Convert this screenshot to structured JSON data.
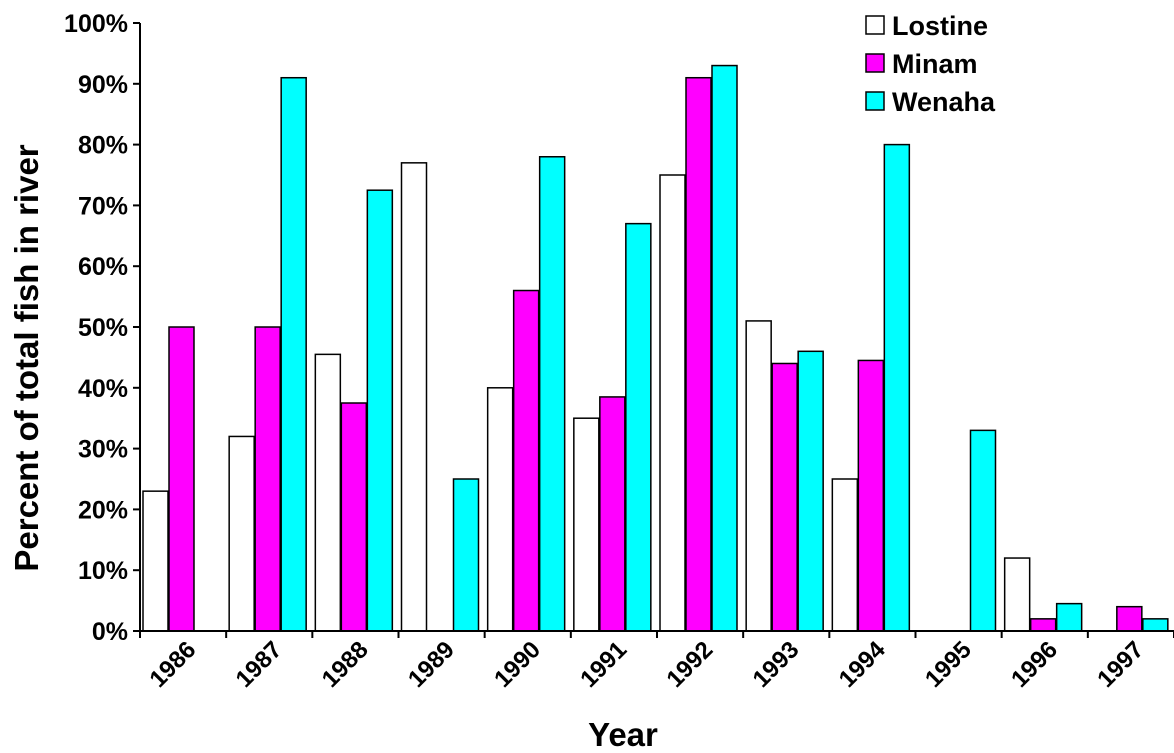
{
  "chart_data": {
    "type": "bar",
    "xlabel": "Year",
    "ylabel": "Percent of  total fish in river",
    "ylim": [
      0,
      100
    ],
    "yticks": [
      "0%",
      "10%",
      "20%",
      "30%",
      "40%",
      "50%",
      "60%",
      "70%",
      "80%",
      "90%",
      "100%"
    ],
    "categories": [
      "1986",
      "1987",
      "1988",
      "1989",
      "1990",
      "1991",
      "1992",
      "1993",
      "1994",
      "1995",
      "1996",
      "1997"
    ],
    "legend_position": "top-right",
    "grid": false,
    "series": [
      {
        "name": "Lostine",
        "color": "#ffffff",
        "values": [
          23,
          32,
          45.5,
          77,
          40,
          35,
          75,
          51,
          25,
          0,
          12,
          0
        ]
      },
      {
        "name": "Minam",
        "color": "#ff00ff",
        "values": [
          50,
          50,
          37.5,
          0,
          56,
          38.5,
          91,
          44,
          44.5,
          0,
          2,
          4
        ]
      },
      {
        "name": "Wenaha",
        "color": "#00ffff",
        "values": [
          0,
          91,
          72.5,
          25,
          78,
          67,
          93,
          46,
          80,
          33,
          4.5,
          2
        ]
      }
    ]
  }
}
